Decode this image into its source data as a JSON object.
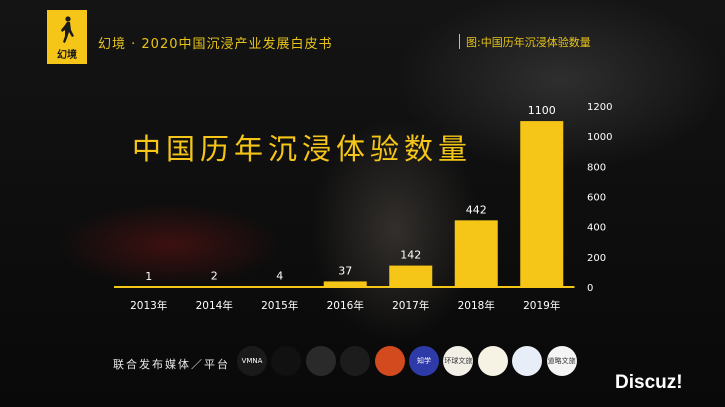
{
  "header": {
    "title": "幻境 · 2020中国沉浸产业发展白皮书",
    "caption": "图:中国历年沉浸体验数量",
    "logo_text": "幻境"
  },
  "chart_data": {
    "type": "bar",
    "title": "中国历年沉浸体验数量",
    "categories": [
      "2013年",
      "2014年",
      "2015年",
      "2016年",
      "2017年",
      "2018年",
      "2019年"
    ],
    "values": [
      1,
      2,
      4,
      37,
      142,
      442,
      1100
    ],
    "value_labels": [
      "1",
      "2",
      "4",
      "37",
      "142",
      "442",
      "1100"
    ],
    "ylim": [
      0,
      1200
    ],
    "yticks": [
      "0",
      "200",
      "400",
      "600",
      "800",
      "1000",
      "1200"
    ],
    "y_axis_position": "right",
    "bar_color": "#f5c518"
  },
  "footer": {
    "label": "联合发布媒体／平台",
    "partners": [
      {
        "name": "vmna-logo",
        "text": "VMNA",
        "bg": "#1a1a1a"
      },
      {
        "name": "partner-2-logo",
        "text": "",
        "bg": "#111111"
      },
      {
        "name": "partner-3-logo",
        "text": "",
        "bg": "#2a2a2a"
      },
      {
        "name": "partner-4-logo",
        "text": "",
        "bg": "#1c1c1c"
      },
      {
        "name": "partner-5-logo",
        "text": "",
        "bg": "#d24a1e"
      },
      {
        "name": "partner-6-logo",
        "text": "知学",
        "bg": "#2d3aa8"
      },
      {
        "name": "partner-7-logo",
        "text": "环球文旅",
        "bg": "#f2f0e6"
      },
      {
        "name": "partner-8-logo",
        "text": "",
        "bg": "#f7f3e4"
      },
      {
        "name": "partner-9-logo",
        "text": "",
        "bg": "#e8eef7"
      },
      {
        "name": "partner-10-logo",
        "text": "道略文旅",
        "bg": "#f4f4f4"
      }
    ]
  },
  "watermark": "Discuz!"
}
